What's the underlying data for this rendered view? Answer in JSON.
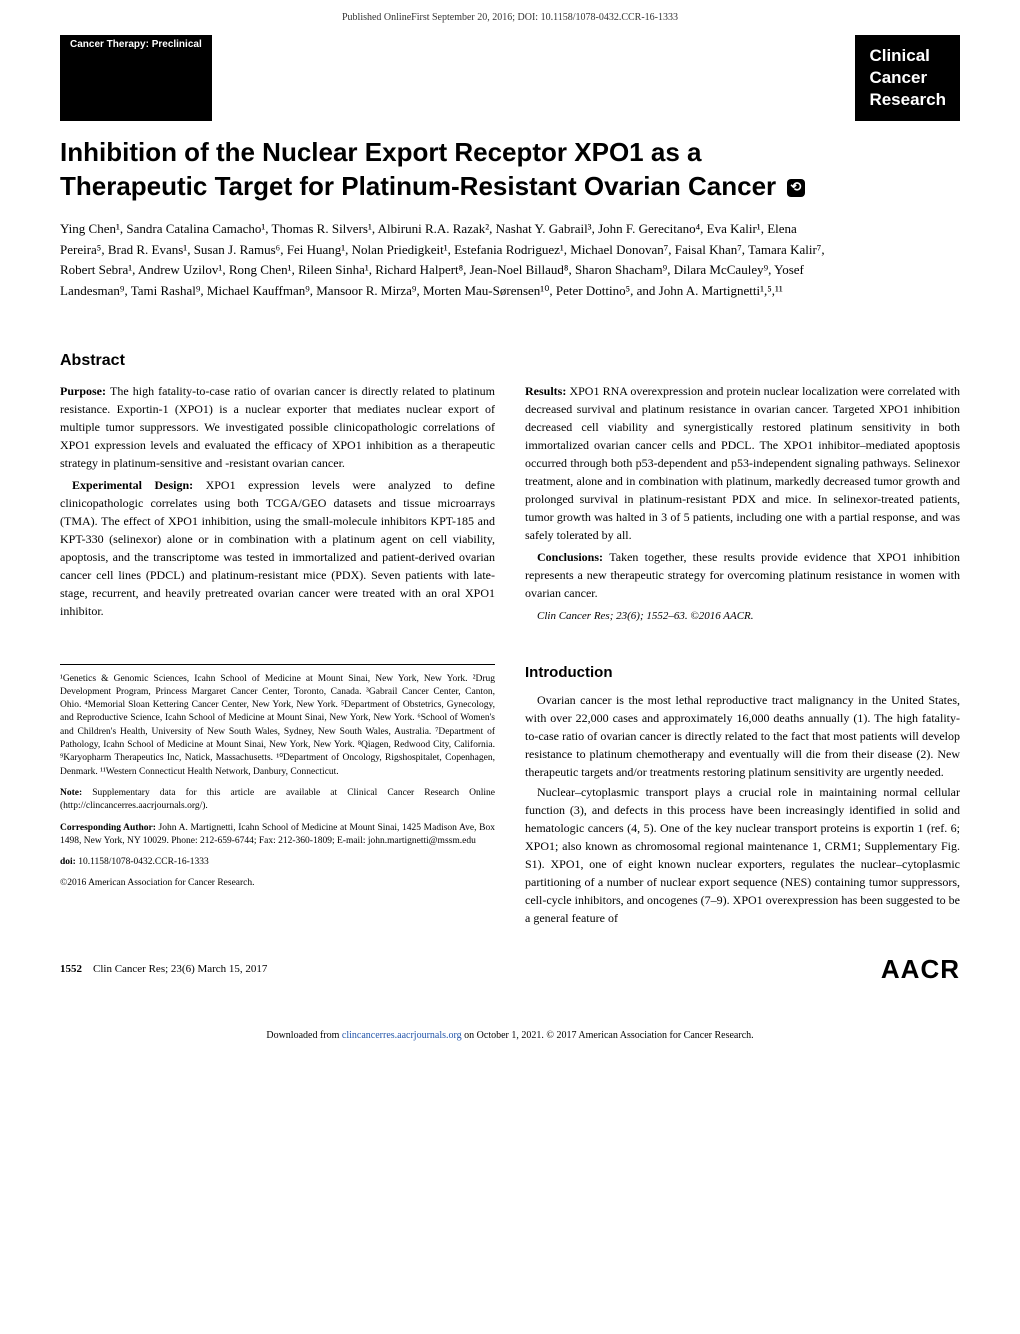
{
  "header": {
    "published_note": "Published OnlineFirst September 20, 2016; DOI: 10.1158/1078-0432.CCR-16-1333"
  },
  "section_tag": "Cancer Therapy: Preclinical",
  "journal": {
    "line1": "Clinical",
    "line2": "Cancer",
    "line3": "Research"
  },
  "title": "Inhibition of the Nuclear Export Receptor XPO1 as a Therapeutic Target for Platinum-Resistant Ovarian Cancer",
  "authors": "Ying Chen¹, Sandra Catalina Camacho¹, Thomas R. Silvers¹, Albiruni R.A. Razak², Nashat Y. Gabrail³, John F. Gerecitano⁴, Eva Kalir¹, Elena Pereira⁵, Brad R. Evans¹, Susan J. Ramus⁶, Fei Huang¹, Nolan Priedigkeit¹, Estefania Rodriguez¹, Michael Donovan⁷, Faisal Khan⁷, Tamara Kalir⁷, Robert Sebra¹, Andrew Uzilov¹, Rong Chen¹, Rileen Sinha¹, Richard Halpert⁸, Jean-Noel Billaud⁸, Sharon Shacham⁹, Dilara McCauley⁹, Yosef Landesman⁹, Tami Rashal⁹, Michael Kauffman⁹, Mansoor R. Mirza⁹, Morten Mau-Sørensen¹⁰, Peter Dottino⁵, and John A. Martignetti¹,⁵,¹¹",
  "abstract": {
    "heading": "Abstract",
    "purpose": "The high fatality-to-case ratio of ovarian cancer is directly related to platinum resistance. Exportin-1 (XPO1) is a nuclear exporter that mediates nuclear export of multiple tumor suppressors. We investigated possible clinicopathologic correlations of XPO1 expression levels and evaluated the efficacy of XPO1 inhibition as a therapeutic strategy in platinum-sensitive and -resistant ovarian cancer.",
    "design": "XPO1 expression levels were analyzed to define clinicopathologic correlates using both TCGA/GEO datasets and tissue microarrays (TMA). The effect of XPO1 inhibition, using the small-molecule inhibitors KPT-185 and KPT-330 (selinexor) alone or in combination with a platinum agent on cell viability, apoptosis, and the transcriptome was tested in immortalized and patient-derived ovarian cancer cell lines (PDCL) and platinum-resistant mice (PDX). Seven patients with late-stage, recurrent, and heavily pretreated ovarian cancer were treated with an oral XPO1 inhibitor.",
    "results": "XPO1 RNA overexpression and protein nuclear localization were correlated with decreased survival and platinum resistance in ovarian cancer. Targeted XPO1 inhibition decreased cell viability and synergistically restored platinum sensitivity in both immortalized ovarian cancer cells and PDCL. The XPO1 inhibitor–mediated apoptosis occurred through both p53-dependent and p53-independent signaling pathways. Selinexor treatment, alone and in combination with platinum, markedly decreased tumor growth and prolonged survival in platinum-resistant PDX and mice. In selinexor-treated patients, tumor growth was halted in 3 of 5 patients, including one with a partial response, and was safely tolerated by all.",
    "conclusions": "Taken together, these results provide evidence that XPO1 inhibition represents a new therapeutic strategy for overcoming platinum resistance in women with ovarian cancer.",
    "citation": "Clin Cancer Res; 23(6); 1552–63. ©2016 AACR."
  },
  "affiliations": {
    "list": "¹Genetics & Genomic Sciences, Icahn School of Medicine at Mount Sinai, New York, New York. ²Drug Development Program, Princess Margaret Cancer Center, Toronto, Canada. ³Gabrail Cancer Center, Canton, Ohio. ⁴Memorial Sloan Kettering Cancer Center, New York, New York. ⁵Department of Obstetrics, Gynecology, and Reproductive Science, Icahn School of Medicine at Mount Sinai, New York, New York. ⁶School of Women's and Children's Health, University of New South Wales, Sydney, New South Wales, Australia. ⁷Department of Pathology, Icahn School of Medicine at Mount Sinai, New York, New York. ⁸Qiagen, Redwood City, California. ⁹Karyopharm Therapeutics Inc, Natick, Massachusetts. ¹⁰Department of Oncology, Rigshospitalet, Copenhagen, Denmark. ¹¹Western Connecticut Health Network, Danbury, Connecticut.",
    "note": "Supplementary data for this article are available at Clinical Cancer Research Online (http://clincancerres.aacrjournals.org/).",
    "corresponding": "John A. Martignetti, Icahn School of Medicine at Mount Sinai, 1425 Madison Ave, Box 1498, New York, NY 10029. Phone: 212-659-6744; Fax: 212-360-1809; E-mail: john.martignetti@mssm.edu",
    "doi": "10.1158/1078-0432.CCR-16-1333",
    "copyright": "©2016 American Association for Cancer Research."
  },
  "intro": {
    "heading": "Introduction",
    "p1": "Ovarian cancer is the most lethal reproductive tract malignancy in the United States, with over 22,000 cases and approximately 16,000 deaths annually (1). The high fatality-to-case ratio of ovarian cancer is directly related to the fact that most patients will develop resistance to platinum chemotherapy and eventually will die from their disease (2). New therapeutic targets and/or treatments restoring platinum sensitivity are urgently needed.",
    "p2": "Nuclear–cytoplasmic transport plays a crucial role in maintaining normal cellular function (3), and defects in this process have been increasingly identified in solid and hematologic cancers (4, 5). One of the key nuclear transport proteins is exportin 1 (ref. 6; XPO1; also known as chromosomal regional maintenance 1, CRM1; Supplementary Fig. S1). XPO1, one of eight known nuclear exporters, regulates the nuclear–cytoplasmic partitioning of a number of nuclear export sequence (NES) containing tumor suppressors, cell-cycle inhibitors, and oncogenes (7–9). XPO1 overexpression has been suggested to be a general feature of"
  },
  "footer": {
    "page": "1552",
    "journal_issue": "Clin Cancer Res; 23(6) March 15, 2017",
    "publisher": "AACR"
  },
  "download_footer": {
    "text1": "Downloaded from ",
    "link": "clincancerres.aacrjournals.org",
    "text2": " on October 1, 2021. © 2017 American Association for Cancer Research."
  },
  "labels": {
    "purpose": "Purpose: ",
    "design": "Experimental Design: ",
    "results": "Results: ",
    "conclusions": "Conclusions: ",
    "note": "Note: ",
    "corresponding": "Corresponding Author: ",
    "doi": "doi: "
  }
}
